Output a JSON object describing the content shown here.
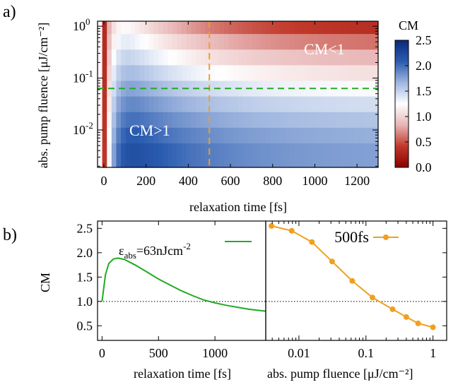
{
  "panels": {
    "a": "a)",
    "b": "b)"
  },
  "chart_data": [
    {
      "id": "a",
      "type": "heatmap",
      "xlabel": "relaxation time  [fs]",
      "ylabel": "abs. pump fluence  [μJ/cm⁻²]",
      "xlim": [
        -30,
        1300
      ],
      "xticks": [
        0,
        200,
        400,
        600,
        800,
        1000,
        1200
      ],
      "ylim": [
        0.0019,
        1.25
      ],
      "yscale": "log",
      "yticks": [
        {
          "value": 1,
          "mant": "10",
          "exp": "0"
        },
        {
          "value": 0.1,
          "mant": "10",
          "exp": "-1"
        },
        {
          "value": 0.01,
          "mant": "10",
          "exp": "-2"
        }
      ],
      "colorbar": {
        "title": "CM",
        "range": [
          0,
          2.5
        ],
        "ticks": [
          "2.5",
          "2.0",
          "1.5",
          "1.0",
          "0.5",
          "0.0"
        ],
        "colors": [
          "#8b0000",
          "#c0392b",
          "#e8b5b5",
          "#ffffff",
          "#9fb6df",
          "#2b5cb0",
          "#0a2a7a"
        ]
      },
      "fluence_rows": [
        1.0,
        0.5,
        0.25,
        0.125,
        0.0625,
        0.03125,
        0.0156,
        0.0078,
        0.0039
      ],
      "vline": {
        "x": 500,
        "color": "#f0a020"
      },
      "hline": {
        "y": 0.063,
        "color": "#22aa22"
      },
      "annotations": [
        "CM<1",
        "CM>1"
      ]
    },
    {
      "id": "b-left",
      "type": "line",
      "ylabel": "CM",
      "xlabel": "relaxation time  [fs]",
      "xlim": [
        -40,
        1450
      ],
      "ylim": [
        0.2,
        2.65
      ],
      "xticks": [
        "0",
        "500",
        "1000"
      ],
      "yticks": [
        "2.5",
        "2.0",
        "1.5",
        "1.0",
        "0.5"
      ],
      "legend": {
        "sym": "ε",
        "sub": "abs",
        "main": "=63nJcm",
        "sup": "-2"
      },
      "reference_line": 1.0,
      "series": [
        {
          "color": "#22aa22",
          "x": [
            0,
            30,
            60,
            100,
            140,
            200,
            300,
            400,
            500,
            600,
            700,
            800,
            900,
            1000,
            1100,
            1200,
            1300,
            1450
          ],
          "y": [
            1.0,
            1.55,
            1.78,
            1.87,
            1.89,
            1.86,
            1.74,
            1.6,
            1.46,
            1.34,
            1.22,
            1.12,
            1.03,
            0.97,
            0.92,
            0.88,
            0.84,
            0.8
          ]
        }
      ]
    },
    {
      "id": "b-right",
      "type": "line",
      "xlabel": "abs. pump fluence    [μJ/cm⁻²]",
      "xscale": "log",
      "xlim": [
        0.0032,
        1.6
      ],
      "ylim": [
        0.2,
        2.65
      ],
      "xticks": [
        "0.01",
        "0.1",
        "1"
      ],
      "reference_line": 1.0,
      "series": [
        {
          "name": "500fs",
          "color": "#f0a020",
          "x": [
            0.0039,
            0.0078,
            0.0156,
            0.03125,
            0.0625,
            0.125,
            0.25,
            0.4,
            0.6,
            1.0
          ],
          "y": [
            2.55,
            2.45,
            2.22,
            1.82,
            1.42,
            1.08,
            0.84,
            0.68,
            0.55,
            0.47
          ]
        }
      ]
    }
  ]
}
